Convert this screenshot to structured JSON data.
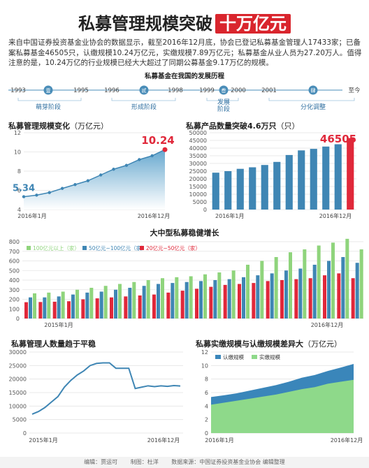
{
  "title": {
    "main": "私募管理规模突破",
    "highlight": "十万亿元"
  },
  "intro": "来自中国证券投资基金业协会的数据显示，截至2016年12月底，协会已登记私募基金管理人17433家；已备案私募基金46505只，认缴规模10.24万亿元，实缴规模7.89万亿元；私募基金从业人员为27.20万人。值得注意的是，10.24万亿的行业规模已经大大超过了同期公募基金9.17万亿的规模。",
  "timeline": {
    "title": "私募基金在我国的发展历程",
    "years": [
      "1993",
      "1995",
      "1996",
      "1998",
      "1999",
      "2000",
      "2001",
      "至今"
    ],
    "badges": [
      "壹",
      "贰",
      "叁",
      "肆"
    ],
    "phases": [
      "萌芽阶段",
      "形成阶段",
      "发展阶段",
      "分化调整"
    ],
    "colors": {
      "line": "#4a8db8",
      "badge": "#4a8db8",
      "phase": "#2f6fa0"
    }
  },
  "charts": {
    "scale": {
      "title": "私募管理规模变化",
      "unit": "（万亿元）",
      "start_label": "5.34",
      "end_label": "10.24",
      "x_start": "2016年1月",
      "x_end": "2016年12月",
      "yticks": [
        "4",
        "6",
        "8",
        "10",
        "12"
      ]
    },
    "products": {
      "title": "私募产品数量突破4.6万只",
      "unit": "（只）",
      "end_label": "46505",
      "x_start": "2016年1月",
      "x_end": "2016年12月",
      "yticks": [
        "0",
        "5000",
        "10000",
        "15000",
        "20000",
        "25000",
        "30000",
        "35000",
        "40000",
        "45000",
        "50000"
      ]
    },
    "institutions": {
      "title": "大中型私募稳健增长",
      "legend": [
        "100亿元以上（家）",
        "50亿元~100亿元（家）",
        "20亿元~50亿元（家）"
      ],
      "x_start": "2015年1月",
      "x_end": "2016年12月",
      "yticks": [
        "0",
        "100",
        "200",
        "300",
        "400",
        "500",
        "600",
        "700",
        "800"
      ]
    },
    "people": {
      "title": "私募管理人数量趋于平稳",
      "x_start": "2015年1月",
      "x_end": "2016年12月",
      "yticks": [
        "0",
        "5000",
        "10000",
        "15000",
        "20000",
        "25000",
        "30000"
      ]
    },
    "gap": {
      "title": "私募实缴规模与认缴规模差异大",
      "unit": "（万亿元）",
      "legend": [
        "认缴规模",
        "实缴规模"
      ],
      "x_start": "2016年1月",
      "x_end": "2016年12月",
      "yticks": [
        "0",
        "2",
        "4",
        "6",
        "8",
        "10",
        "12"
      ]
    }
  },
  "chart_data": [
    {
      "type": "area",
      "title": "私募管理规模变化",
      "unit": "万亿元",
      "x": [
        "2016-01",
        "2016-02",
        "2016-03",
        "2016-04",
        "2016-05",
        "2016-06",
        "2016-07",
        "2016-08",
        "2016-09",
        "2016-10",
        "2016-11",
        "2016-12"
      ],
      "values": [
        5.34,
        5.5,
        5.77,
        6.2,
        6.6,
        7.0,
        7.6,
        8.2,
        8.6,
        9.2,
        9.6,
        10.24
      ],
      "ylim": [
        4,
        12
      ],
      "colors": {
        "line": "#3f86b4",
        "fill": "#5ea3cc",
        "end": "#e0283a"
      }
    },
    {
      "type": "bar",
      "title": "私募产品数量突破4.6万只",
      "unit": "只",
      "x": [
        "2016-01",
        "2016-02",
        "2016-03",
        "2016-04",
        "2016-05",
        "2016-06",
        "2016-07",
        "2016-08",
        "2016-09",
        "2016-10",
        "2016-11",
        "2016-12"
      ],
      "values": [
        24000,
        25000,
        26500,
        27500,
        29000,
        31000,
        35500,
        38500,
        39500,
        41000,
        42500,
        46505
      ],
      "ylim": [
        0,
        50000
      ],
      "colors": {
        "bar": "#3f86b4",
        "last": "#e0283a"
      }
    },
    {
      "type": "bar",
      "title": "大中型私募稳健增长",
      "x": [
        "2015-01",
        "2015-02",
        "2015-03",
        "2015-04",
        "2015-05",
        "2015-06",
        "2015-07",
        "2015-08",
        "2015-09",
        "2015-10",
        "2015-11",
        "2015-12",
        "2016-01",
        "2016-02",
        "2016-03",
        "2016-04",
        "2016-05",
        "2016-06",
        "2016-07",
        "2016-08",
        "2016-09",
        "2016-10",
        "2016-11",
        "2016-12"
      ],
      "series": [
        {
          "name": "100亿元以上（家）",
          "color": "#8fd47c",
          "values": [
            262,
            270,
            280,
            300,
            320,
            340,
            360,
            380,
            400,
            420,
            430,
            440,
            460,
            480,
            500,
            560,
            600,
            640,
            690,
            720,
            760,
            790,
            830,
            720
          ]
        },
        {
          "name": "50亿元~100亿元（家）",
          "color": "#3f86b4",
          "values": [
            220,
            220,
            230,
            250,
            270,
            280,
            300,
            320,
            340,
            360,
            370,
            380,
            390,
            400,
            410,
            430,
            450,
            470,
            500,
            520,
            560,
            600,
            640,
            580
          ]
        },
        {
          "name": "20亿元~50亿元（家）",
          "color": "#e0283a",
          "values": [
            170,
            172,
            175,
            180,
            200,
            210,
            220,
            230,
            240,
            250,
            270,
            290,
            310,
            330,
            350,
            360,
            370,
            390,
            400,
            410,
            420,
            450,
            470,
            420
          ]
        }
      ],
      "ylim": [
        0,
        800
      ]
    },
    {
      "type": "line",
      "title": "私募管理人数量趋于平稳",
      "x": [
        "2015-01",
        "2015-02",
        "2015-03",
        "2015-04",
        "2015-05",
        "2015-06",
        "2015-07",
        "2015-08",
        "2015-09",
        "2015-10",
        "2015-11",
        "2015-12",
        "2016-01",
        "2016-02",
        "2016-03",
        "2016-04",
        "2016-05",
        "2016-06",
        "2016-07",
        "2016-08",
        "2016-09",
        "2016-10",
        "2016-11",
        "2016-12"
      ],
      "values": [
        7000,
        8000,
        9500,
        11500,
        13500,
        17000,
        19500,
        21500,
        23000,
        25000,
        25800,
        26000,
        26000,
        24000,
        24000,
        24000,
        16500,
        17000,
        17500,
        17200,
        17500,
        17300,
        17600,
        17433
      ],
      "ylim": [
        0,
        30000
      ],
      "colors": {
        "line": "#3f86b4"
      }
    },
    {
      "type": "area",
      "title": "私募实缴规模与认缴规模差异大",
      "unit": "万亿元",
      "x": [
        "2016-01",
        "2016-02",
        "2016-03",
        "2016-04",
        "2016-05",
        "2016-06",
        "2016-07",
        "2016-08",
        "2016-09",
        "2016-10",
        "2016-11",
        "2016-12"
      ],
      "series": [
        {
          "name": "认缴规模",
          "color": "#3a86ba",
          "values": [
            5.34,
            5.6,
            5.9,
            6.3,
            6.7,
            7.1,
            7.6,
            8.2,
            8.6,
            9.2,
            9.7,
            10.24
          ]
        },
        {
          "name": "实缴规模",
          "color": "#8ed98a",
          "values": [
            4.2,
            4.5,
            4.8,
            5.1,
            5.4,
            5.7,
            6.1,
            6.5,
            6.8,
            7.3,
            7.6,
            7.89
          ]
        }
      ],
      "ylim": [
        0,
        12
      ]
    }
  ],
  "footer": {
    "editor": "编辑：贾运可",
    "designer": "制图：杜洋",
    "source": "数据来源：中国证券投资基金业协会 编辑整理"
  }
}
